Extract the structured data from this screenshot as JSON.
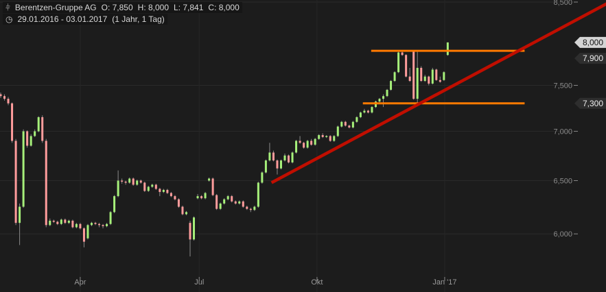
{
  "header": {
    "icon": "candlestick-icon",
    "name": "Berentzen-Gruppe AG",
    "open": "O: 7,850",
    "high": "H: 8,000",
    "low": "L: 7,841",
    "close": "C: 8,000",
    "period_icon": "clock-icon",
    "range": "29.01.2016 - 03.01.2017",
    "span": "(1 Jahr, 1 Tag)"
  },
  "chart_data": {
    "type": "candlestick",
    "y_scale": "log",
    "ylim": [
      5750,
      8500
    ],
    "grid": true,
    "colors": {
      "up": "#a6f07a",
      "down": "#ff9c9c",
      "wick": "#8a8a8a",
      "background": "#1c1c1c",
      "support_resistance": "#ff7a00",
      "trendline": "#c00e00"
    },
    "y_ticks": [
      {
        "value": 8500,
        "label": "8,500"
      },
      {
        "value": 7500,
        "label": "7,500"
      },
      {
        "value": 7000,
        "label": "7,000"
      },
      {
        "value": 6500,
        "label": "6,500"
      },
      {
        "value": 6000,
        "label": "6,000"
      }
    ],
    "x_ticks": [
      {
        "label": "Apr",
        "index": 21
      },
      {
        "label": "Jul",
        "index": 52.4
      },
      {
        "label": "Okt",
        "index": 83.5
      },
      {
        "label": "Jan '17",
        "index": 117.2
      }
    ],
    "price_labels": [
      {
        "value": 8000,
        "label": "8,000",
        "style": "light"
      },
      {
        "value": 7900,
        "label": "7,900",
        "style": "dark"
      },
      {
        "value": 7300,
        "label": "7,300",
        "style": "dark"
      }
    ],
    "horizontal_lines": [
      {
        "value": 7900,
        "from_index": 97.8,
        "to_index": 138.3
      },
      {
        "value": 7300,
        "from_index": 95.6,
        "to_index": 138.3
      }
    ],
    "trendline": [
      {
        "index": 71.5,
        "value": 6480
      },
      {
        "index": 160,
        "value": 8480
      }
    ],
    "ohlc": [
      [
        7400,
        7420,
        7360,
        7380
      ],
      [
        7380,
        7400,
        7330,
        7350
      ],
      [
        7350,
        7370,
        7280,
        7300
      ],
      [
        7300,
        7310,
        6880,
        6900
      ],
      [
        6900,
        6920,
        6080,
        6100
      ],
      [
        6100,
        6280,
        5900,
        6250
      ],
      [
        6250,
        7020,
        6240,
        7000
      ],
      [
        7000,
        7010,
        6830,
        6850
      ],
      [
        6850,
        6970,
        6840,
        6950
      ],
      [
        6950,
        7020,
        6940,
        7000
      ],
      [
        7000,
        7160,
        6990,
        7150
      ],
      [
        7150,
        7170,
        6880,
        6900
      ],
      [
        6900,
        6920,
        6060,
        6080
      ],
      [
        6080,
        6140,
        6070,
        6120
      ],
      [
        6120,
        6130,
        6100,
        6110
      ],
      [
        6110,
        6120,
        6080,
        6090
      ],
      [
        6090,
        6140,
        6080,
        6130
      ],
      [
        6130,
        6140,
        6090,
        6100
      ],
      [
        6100,
        6130,
        6090,
        6120
      ],
      [
        6120,
        6130,
        6050,
        6060
      ],
      [
        6060,
        6100,
        6050,
        6090
      ],
      [
        6090,
        6100,
        6040,
        6050
      ],
      [
        6050,
        6060,
        5880,
        5930
      ],
      [
        5960,
        6090,
        5950,
        6080
      ],
      [
        6080,
        6110,
        6070,
        6100
      ],
      [
        6100,
        6110,
        6080,
        6090
      ],
      [
        6090,
        6100,
        6060,
        6080
      ],
      [
        6080,
        6090,
        6050,
        6070
      ],
      [
        6070,
        6100,
        6060,
        6090
      ],
      [
        6090,
        6210,
        6080,
        6200
      ],
      [
        6200,
        6360,
        6190,
        6350
      ],
      [
        6350,
        6600,
        6340,
        6500
      ],
      [
        6500,
        6520,
        6470,
        6490
      ],
      [
        6490,
        6500,
        6460,
        6480
      ],
      [
        6480,
        6530,
        6470,
        6520
      ],
      [
        6520,
        6530,
        6450,
        6460
      ],
      [
        6460,
        6510,
        6450,
        6500
      ],
      [
        6500,
        6510,
        6470,
        6480
      ],
      [
        6480,
        6490,
        6390,
        6400
      ],
      [
        6400,
        6450,
        6390,
        6440
      ],
      [
        6440,
        6470,
        6430,
        6460
      ],
      [
        6460,
        6470,
        6410,
        6420
      ],
      [
        6420,
        6430,
        6350,
        6390
      ],
      [
        6390,
        6420,
        6380,
        6410
      ],
      [
        6410,
        6420,
        6370,
        6380
      ],
      [
        6380,
        6390,
        6340,
        6350
      ],
      [
        6350,
        6360,
        6310,
        6320
      ],
      [
        6320,
        6330,
        6240,
        6250
      ],
      [
        6250,
        6260,
        6170,
        6180
      ],
      [
        6180,
        6210,
        6170,
        6200
      ],
      [
        6100,
        6120,
        5800,
        5950
      ],
      [
        5950,
        6160,
        5940,
        6150
      ],
      [
        6330,
        6370,
        6320,
        6350
      ],
      [
        6350,
        6360,
        6320,
        6330
      ],
      [
        6330,
        6390,
        6320,
        6380
      ],
      [
        6500,
        6530,
        6490,
        6520
      ],
      [
        6520,
        6530,
        6350,
        6360
      ],
      [
        6360,
        6370,
        6220,
        6230
      ],
      [
        6230,
        6290,
        6220,
        6280
      ],
      [
        6280,
        6330,
        6270,
        6320
      ],
      [
        6320,
        6360,
        6310,
        6350
      ],
      [
        6350,
        6360,
        6290,
        6300
      ],
      [
        6300,
        6310,
        6270,
        6280
      ],
      [
        6280,
        6310,
        6270,
        6300
      ],
      [
        6300,
        6310,
        6240,
        6250
      ],
      [
        6250,
        6260,
        6220,
        6230
      ],
      [
        6230,
        6240,
        6200,
        6220
      ],
      [
        6220,
        6260,
        6210,
        6250
      ],
      [
        6250,
        6490,
        6240,
        6480
      ],
      [
        6480,
        6590,
        6470,
        6580
      ],
      [
        6580,
        6710,
        6570,
        6700
      ],
      [
        6700,
        6880,
        6690,
        6780
      ],
      [
        6780,
        6800,
        6690,
        6700
      ],
      [
        6700,
        6710,
        6560,
        6620
      ],
      [
        6620,
        6710,
        6610,
        6700
      ],
      [
        6700,
        6770,
        6690,
        6750
      ],
      [
        6750,
        6760,
        6670,
        6680
      ],
      [
        6680,
        6790,
        6670,
        6780
      ],
      [
        6780,
        6910,
        6770,
        6900
      ],
      [
        6900,
        6950,
        6870,
        6880
      ],
      [
        6880,
        6890,
        6820,
        6830
      ],
      [
        6830,
        6910,
        6820,
        6900
      ],
      [
        6900,
        6920,
        6850,
        6860
      ],
      [
        6860,
        6930,
        6850,
        6920
      ],
      [
        6920,
        6970,
        6910,
        6960
      ],
      [
        6960,
        6980,
        6930,
        6940
      ],
      [
        6940,
        6960,
        6930,
        6950
      ],
      [
        6950,
        6960,
        6890,
        6900
      ],
      [
        6900,
        6960,
        6890,
        6950
      ],
      [
        6950,
        7060,
        6940,
        7050
      ],
      [
        7050,
        7110,
        7040,
        7100
      ],
      [
        7100,
        7110,
        7050,
        7060
      ],
      [
        7060,
        7070,
        7030,
        7040
      ],
      [
        7040,
        7110,
        7030,
        7100
      ],
      [
        7100,
        7160,
        7090,
        7150
      ],
      [
        7150,
        7210,
        7140,
        7200
      ],
      [
        7200,
        7240,
        7190,
        7220
      ],
      [
        7220,
        7230,
        7190,
        7200
      ],
      [
        7200,
        7270,
        7190,
        7260
      ],
      [
        7260,
        7330,
        7250,
        7320
      ],
      [
        7320,
        7360,
        7310,
        7350
      ],
      [
        7350,
        7400,
        7260,
        7380
      ],
      [
        7380,
        7460,
        7370,
        7450
      ],
      [
        7450,
        7560,
        7440,
        7550
      ],
      [
        7550,
        7660,
        7540,
        7650
      ],
      [
        7650,
        7900,
        7640,
        7880
      ],
      [
        7880,
        7900,
        7840,
        7850
      ],
      [
        7850,
        7860,
        7590,
        7600
      ],
      [
        7600,
        7700,
        7540,
        7550
      ],
      [
        7890,
        7900,
        7340,
        7350
      ],
      [
        7350,
        7890,
        7300,
        7700
      ],
      [
        7700,
        7720,
        7540,
        7550
      ],
      [
        7550,
        7620,
        7540,
        7600
      ],
      [
        7600,
        7610,
        7500,
        7520
      ],
      [
        7520,
        7700,
        7510,
        7680
      ],
      [
        7680,
        7690,
        7550,
        7560
      ],
      [
        7560,
        7600,
        7530,
        7540
      ],
      [
        7560,
        7660,
        7550,
        7650
      ],
      [
        7850,
        8000,
        7841,
        8000
      ]
    ]
  }
}
